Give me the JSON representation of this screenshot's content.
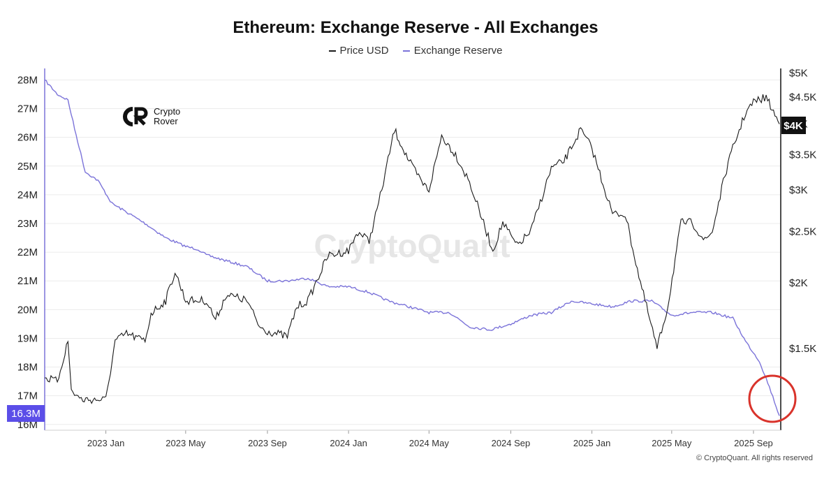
{
  "chart_data": {
    "type": "line",
    "title": "Ethereum: Exchange Reserve - All Exchanges",
    "legend": {
      "placement": "top-center",
      "entries": [
        "Price USD",
        "Exchange Reserve"
      ]
    },
    "watermark": "CryptoQuant",
    "brand": {
      "line1": "Crypto",
      "line2": "Rover"
    },
    "copyright": "© CryptoQuant. All rights reserved",
    "x_ticks": [
      "2023 Jan",
      "2023 May",
      "2023 Sep",
      "2024 Jan",
      "2024 May",
      "2024 Sep",
      "2025 Jan",
      "2025 May",
      "2025 Sep"
    ],
    "x_range": [
      "2022-10-01",
      "2025-10-12"
    ],
    "left_axis": {
      "name": "Exchange Reserve",
      "ticks": [
        "16M",
        "17M",
        "18M",
        "19M",
        "20M",
        "21M",
        "22M",
        "23M",
        "24M",
        "25M",
        "26M",
        "27M",
        "28M"
      ],
      "ylim": [
        15800000,
        28400000
      ]
    },
    "right_axis": {
      "name": "Price USD",
      "scale": "log",
      "ticks": [
        "$1.5K",
        "$2K",
        "$2.5K",
        "$3K",
        "$3.5K",
        "$4K",
        "$4.5K",
        "$5K"
      ],
      "ylim": [
        1050,
        5100
      ]
    },
    "current_labels": {
      "reserve": "16.3M",
      "price": "$4K"
    },
    "annotation": "red circle around latest reserve low",
    "grid": true,
    "colors": {
      "price": "#1a1a1a",
      "reserve": "#7b73d9",
      "reserve_badge": "#5b4ee8",
      "price_badge": "#111111",
      "circle": "#d9332b",
      "grid": "#ececec"
    },
    "series": [
      {
        "name": "Exchange Reserve",
        "axis": "left",
        "x": [
          "2022-10-01",
          "2022-10-20",
          "2022-11-05",
          "2022-11-15",
          "2022-12-01",
          "2022-12-20",
          "2023-01-10",
          "2023-02-01",
          "2023-03-01",
          "2023-04-01",
          "2023-05-01",
          "2023-05-20",
          "2023-06-01",
          "2023-07-01",
          "2023-08-01",
          "2023-09-01",
          "2023-10-01",
          "2023-11-01",
          "2023-12-01",
          "2024-01-01",
          "2024-02-01",
          "2024-03-01",
          "2024-04-01",
          "2024-05-01",
          "2024-06-01",
          "2024-07-01",
          "2024-08-01",
          "2024-09-01",
          "2024-10-01",
          "2024-11-01",
          "2024-12-01",
          "2025-01-01",
          "2025-02-01",
          "2025-03-01",
          "2025-04-01",
          "2025-05-01",
          "2025-06-01",
          "2025-07-01",
          "2025-08-01",
          "2025-08-20",
          "2025-09-10",
          "2025-09-25",
          "2025-10-10"
        ],
        "values": [
          28000000,
          27500000,
          27300000,
          26300000,
          24800000,
          24500000,
          23700000,
          23400000,
          23000000,
          22500000,
          22200000,
          22100000,
          21900000,
          21700000,
          21500000,
          21000000,
          21000000,
          21100000,
          20800000,
          20800000,
          20600000,
          20300000,
          20100000,
          19900000,
          19900000,
          19400000,
          19300000,
          19500000,
          19800000,
          19900000,
          20300000,
          20200000,
          20100000,
          20300000,
          20300000,
          19800000,
          19900000,
          19900000,
          19700000,
          18900000,
          18200000,
          17300000,
          16300000
        ]
      },
      {
        "name": "Price USD",
        "axis": "right",
        "x": [
          "2022-10-01",
          "2022-10-20",
          "2022-11-05",
          "2022-11-10",
          "2022-11-25",
          "2022-12-15",
          "2023-01-01",
          "2023-01-15",
          "2023-02-01",
          "2023-03-01",
          "2023-03-10",
          "2023-04-01",
          "2023-04-15",
          "2023-05-01",
          "2023-06-01",
          "2023-06-15",
          "2023-07-01",
          "2023-08-01",
          "2023-08-20",
          "2023-09-01",
          "2023-10-01",
          "2023-10-15",
          "2023-11-01",
          "2023-12-01",
          "2024-01-01",
          "2024-01-15",
          "2024-02-01",
          "2024-02-20",
          "2024-03-10",
          "2024-04-01",
          "2024-04-20",
          "2024-05-01",
          "2024-05-20",
          "2024-06-10",
          "2024-07-01",
          "2024-08-05",
          "2024-08-20",
          "2024-09-10",
          "2024-10-01",
          "2024-11-01",
          "2024-11-20",
          "2024-12-15",
          "2025-01-01",
          "2025-02-01",
          "2025-02-20",
          "2025-03-15",
          "2025-04-09",
          "2025-04-25",
          "2025-05-15",
          "2025-06-01",
          "2025-06-20",
          "2025-07-01",
          "2025-07-20",
          "2025-08-01",
          "2025-08-20",
          "2025-09-01",
          "2025-09-20",
          "2025-10-10"
        ],
        "values": [
          1320,
          1300,
          1550,
          1250,
          1200,
          1200,
          1200,
          1550,
          1600,
          1550,
          1750,
          1850,
          2100,
          1850,
          1850,
          1700,
          1900,
          1850,
          1650,
          1620,
          1580,
          1800,
          1850,
          2250,
          2300,
          2500,
          2400,
          3000,
          3900,
          3400,
          3100,
          3000,
          3800,
          3500,
          3100,
          2300,
          2600,
          2350,
          2500,
          3300,
          3400,
          3900,
          3600,
          2700,
          2700,
          2000,
          1500,
          1800,
          2600,
          2600,
          2400,
          2500,
          3200,
          3600,
          4200,
          4400,
          4500,
          4000
        ]
      }
    ]
  }
}
